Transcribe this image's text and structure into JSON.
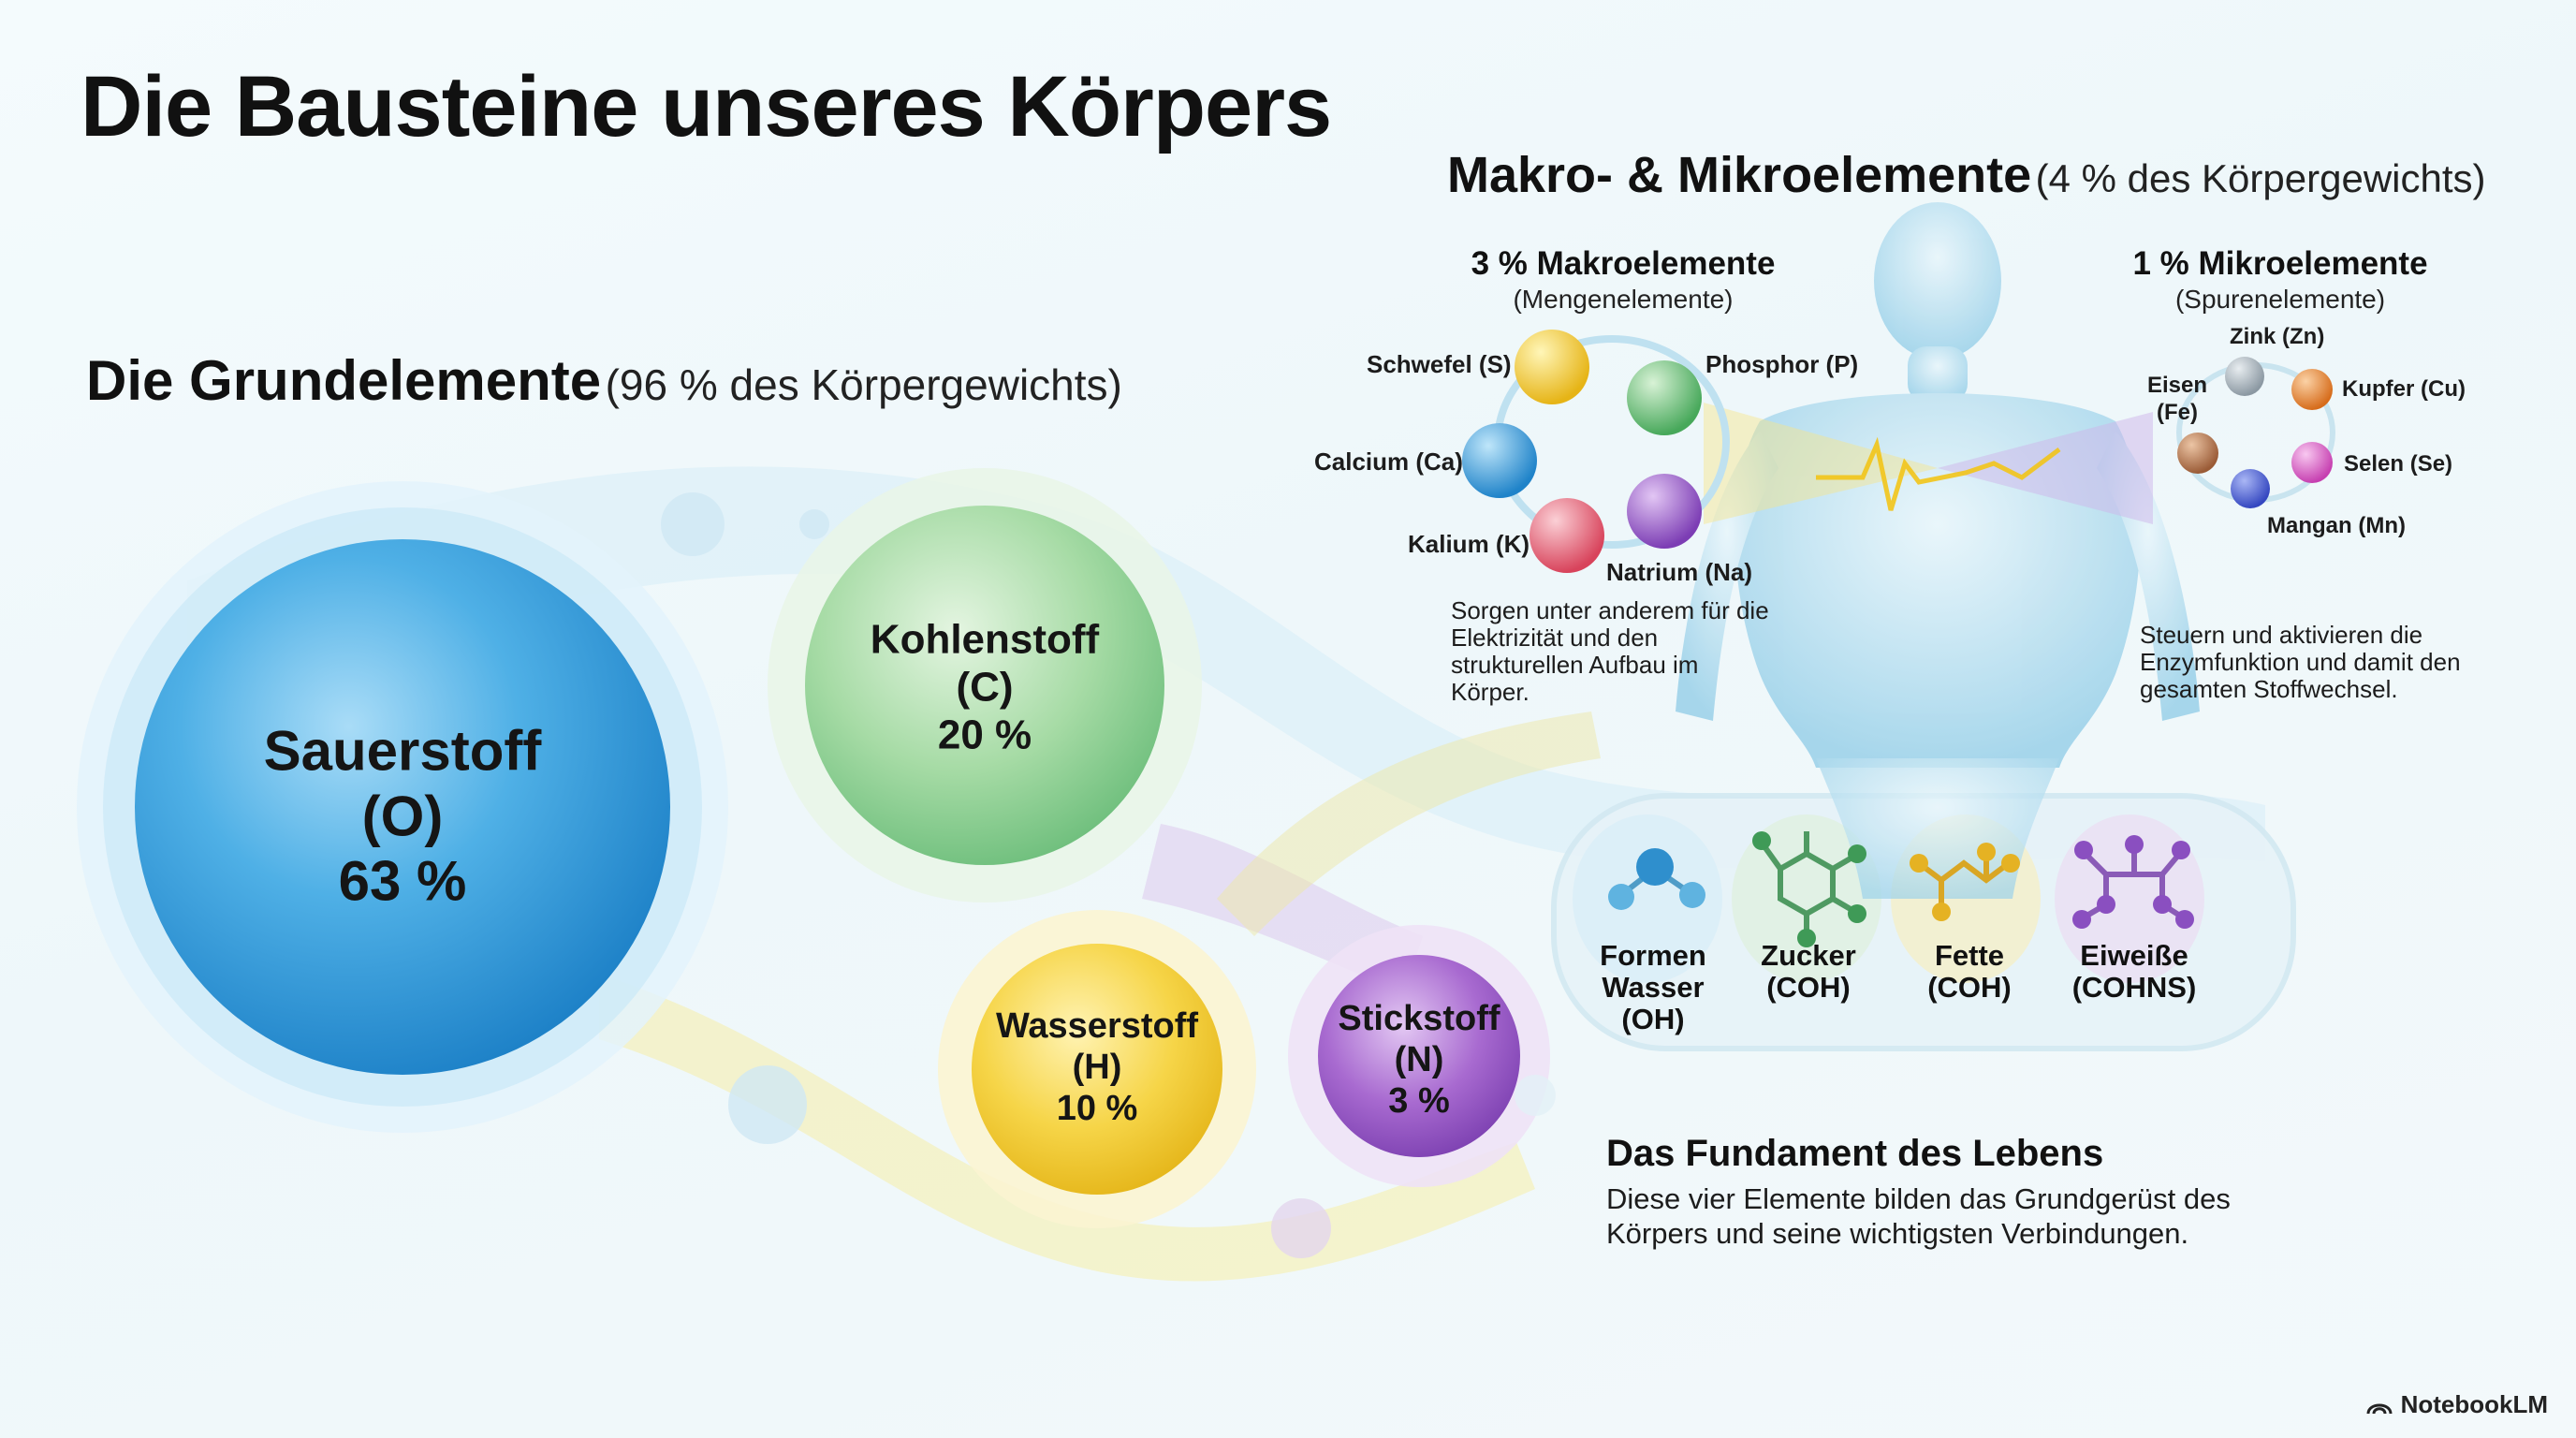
{
  "title": "Die Bausteine unseres Körpers",
  "grund": {
    "heading": "Die Grundelemente",
    "subheading": "(96 % des Körpergewichts)",
    "elements": [
      {
        "name": "Sauerstoff",
        "symbol": "(O)",
        "percent": "63 %",
        "color": "#3aa0de"
      },
      {
        "name": "Kohlenstoff",
        "symbol": "(C)",
        "percent": "20 %",
        "color": "#8ccf95"
      },
      {
        "name": "Wasserstoff",
        "symbol": "(H)",
        "percent": "10 %",
        "color": "#f2cd3a"
      },
      {
        "name": "Stickstoff",
        "symbol": "(N)",
        "percent": "3 %",
        "color": "#9a5dc4"
      }
    ]
  },
  "makro_mikro": {
    "heading": "Makro- & Mikroelemente",
    "subheading": "(4 % des Körpergewichts)"
  },
  "makro": {
    "title": "3 % Makroelemente",
    "subtitle": "(Mengenelemente)",
    "elements": [
      "Schwefel (S)",
      "Phosphor (P)",
      "Calcium (Ca)",
      "Kalium (K)",
      "Natrium (Na)"
    ],
    "description": "Sorgen unter anderem für die Elektrizität und den strukturellen Aufbau im Körper."
  },
  "mikro": {
    "title": "1 % Mikroelemente",
    "subtitle": "(Spurenelemente)",
    "elements": [
      "Zink (Zn)",
      "Eisen",
      "(Fe)",
      "Kupfer (Cu)",
      "Selen (Se)",
      "Mangan (Mn)"
    ],
    "description": "Steuern und aktivieren die Enzymfunktion und damit den gesamten Stoffwechsel."
  },
  "compounds": [
    {
      "line1": "Formen",
      "line2": "Wasser",
      "line3": "(OH)"
    },
    {
      "line1": "Zucker",
      "line2": "(COH)"
    },
    {
      "line1": "Fette",
      "line2": "(COH)"
    },
    {
      "line1": "Eiweiße",
      "line2": "(COHNS)"
    }
  ],
  "fundament": {
    "title": "Das Fundament des Lebens",
    "text": "Diese vier Elemente bilden das Grundgerüst des Körpers und seine wichtigsten Verbindungen."
  },
  "brand": "NotebookLM",
  "icons": [
    "water-molecule-icon",
    "sugar-molecule-icon",
    "fat-molecule-icon",
    "protein-molecule-icon",
    "human-body-icon",
    "notebooklm-logo-icon"
  ]
}
